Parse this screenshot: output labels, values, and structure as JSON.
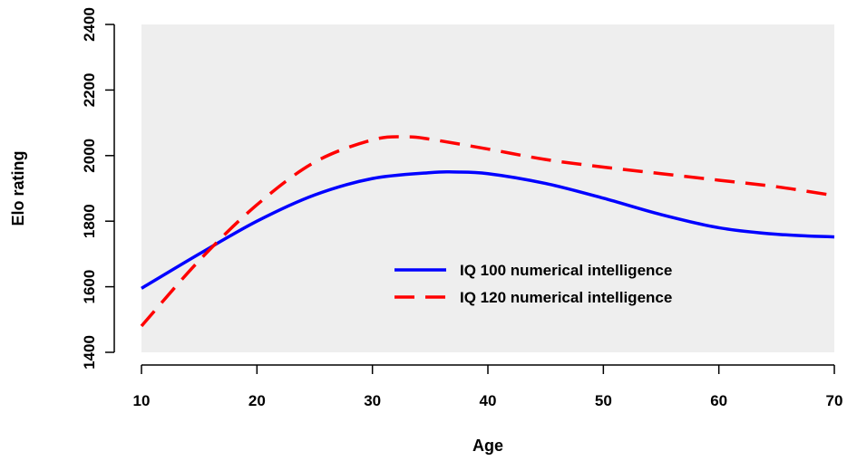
{
  "chart_data": {
    "type": "line",
    "title": "",
    "xlabel": "Age",
    "ylabel": "Elo rating",
    "xlim": [
      10,
      70
    ],
    "ylim": [
      1400,
      2400
    ],
    "xticks": [
      "10",
      "20",
      "30",
      "40",
      "50",
      "60",
      "70"
    ],
    "yticks": [
      "1400",
      "1600",
      "1800",
      "2000",
      "2200",
      "2400"
    ],
    "grid": false,
    "background": "#eeeeee",
    "legend_position": "center-right",
    "series": [
      {
        "name": "IQ 100 numerical intelligence",
        "color": "#0000ff",
        "dash": "solid",
        "x": [
          10,
          15,
          20,
          25,
          30,
          35,
          37,
          40,
          45,
          50,
          55,
          60,
          65,
          70
        ],
        "y": [
          1595,
          1700,
          1800,
          1880,
          1930,
          1948,
          1950,
          1945,
          1915,
          1870,
          1820,
          1780,
          1760,
          1752
        ]
      },
      {
        "name": "IQ 120 numerical intelligence",
        "color": "#ff0000",
        "dash": "dashed",
        "x": [
          10,
          15,
          20,
          25,
          30,
          33,
          35,
          40,
          45,
          50,
          55,
          60,
          65,
          70
        ],
        "y": [
          1480,
          1680,
          1850,
          1980,
          2048,
          2057,
          2050,
          2020,
          1988,
          1965,
          1945,
          1925,
          1905,
          1878
        ]
      }
    ]
  }
}
